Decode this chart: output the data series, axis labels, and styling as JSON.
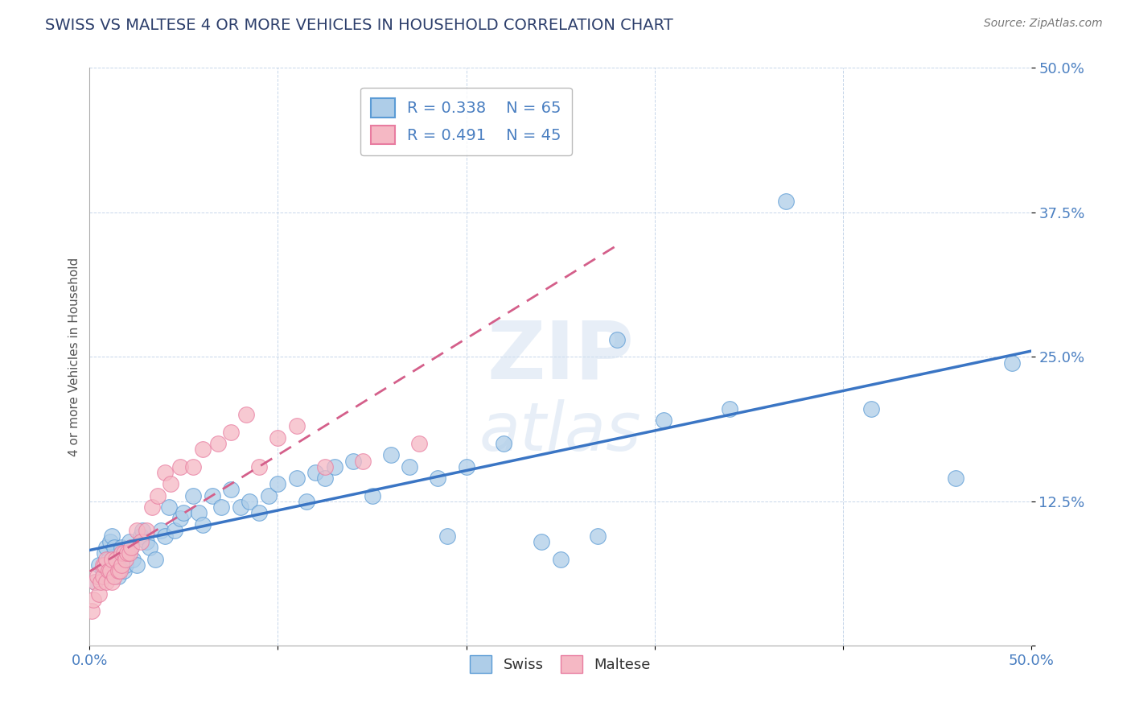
{
  "title": "SWISS VS MALTESE 4 OR MORE VEHICLES IN HOUSEHOLD CORRELATION CHART",
  "source": "Source: ZipAtlas.com",
  "ylabel": "4 or more Vehicles in Household",
  "xlim": [
    0.0,
    0.5
  ],
  "ylim": [
    0.0,
    0.5
  ],
  "xticks": [
    0.0,
    0.1,
    0.2,
    0.3,
    0.4,
    0.5
  ],
  "yticks": [
    0.0,
    0.125,
    0.25,
    0.375,
    0.5
  ],
  "xticklabels": [
    "0.0%",
    "",
    "",
    "",
    "",
    "50.0%"
  ],
  "yticklabels": [
    "",
    "12.5%",
    "25.0%",
    "37.5%",
    "50.0%"
  ],
  "swiss_R": 0.338,
  "swiss_N": 65,
  "maltese_R": 0.491,
  "maltese_N": 45,
  "swiss_color": "#aecde8",
  "maltese_color": "#f5b8c4",
  "swiss_edge_color": "#5b9bd5",
  "maltese_edge_color": "#e87ca0",
  "swiss_line_color": "#3a75c4",
  "maltese_line_color": "#d45f8a",
  "background_color": "#ffffff",
  "swiss_x": [
    0.003,
    0.005,
    0.007,
    0.008,
    0.009,
    0.01,
    0.011,
    0.012,
    0.013,
    0.014,
    0.015,
    0.016,
    0.017,
    0.018,
    0.019,
    0.02,
    0.021,
    0.022,
    0.023,
    0.025,
    0.027,
    0.028,
    0.03,
    0.032,
    0.035,
    0.038,
    0.04,
    0.042,
    0.045,
    0.048,
    0.05,
    0.055,
    0.058,
    0.06,
    0.065,
    0.07,
    0.075,
    0.08,
    0.085,
    0.09,
    0.095,
    0.1,
    0.11,
    0.115,
    0.12,
    0.125,
    0.13,
    0.14,
    0.15,
    0.16,
    0.17,
    0.185,
    0.19,
    0.2,
    0.22,
    0.24,
    0.25,
    0.27,
    0.28,
    0.305,
    0.34,
    0.37,
    0.415,
    0.46,
    0.49
  ],
  "swiss_y": [
    0.055,
    0.07,
    0.065,
    0.08,
    0.085,
    0.075,
    0.09,
    0.095,
    0.085,
    0.07,
    0.06,
    0.075,
    0.085,
    0.065,
    0.07,
    0.08,
    0.09,
    0.085,
    0.075,
    0.07,
    0.095,
    0.1,
    0.09,
    0.085,
    0.075,
    0.1,
    0.095,
    0.12,
    0.1,
    0.11,
    0.115,
    0.13,
    0.115,
    0.105,
    0.13,
    0.12,
    0.135,
    0.12,
    0.125,
    0.115,
    0.13,
    0.14,
    0.145,
    0.125,
    0.15,
    0.145,
    0.155,
    0.16,
    0.13,
    0.165,
    0.155,
    0.145,
    0.095,
    0.155,
    0.175,
    0.09,
    0.075,
    0.095,
    0.265,
    0.195,
    0.205,
    0.385,
    0.205,
    0.145,
    0.245
  ],
  "maltese_x": [
    0.001,
    0.002,
    0.003,
    0.004,
    0.005,
    0.006,
    0.007,
    0.007,
    0.008,
    0.009,
    0.009,
    0.01,
    0.011,
    0.012,
    0.012,
    0.013,
    0.014,
    0.015,
    0.016,
    0.017,
    0.017,
    0.018,
    0.019,
    0.02,
    0.021,
    0.022,
    0.025,
    0.027,
    0.03,
    0.033,
    0.036,
    0.04,
    0.043,
    0.048,
    0.055,
    0.06,
    0.068,
    0.075,
    0.083,
    0.09,
    0.1,
    0.11,
    0.125,
    0.145,
    0.175
  ],
  "maltese_y": [
    0.03,
    0.04,
    0.055,
    0.06,
    0.045,
    0.055,
    0.06,
    0.07,
    0.07,
    0.055,
    0.075,
    0.065,
    0.065,
    0.055,
    0.075,
    0.06,
    0.075,
    0.065,
    0.065,
    0.07,
    0.08,
    0.08,
    0.075,
    0.08,
    0.08,
    0.085,
    0.1,
    0.09,
    0.1,
    0.12,
    0.13,
    0.15,
    0.14,
    0.155,
    0.155,
    0.17,
    0.175,
    0.185,
    0.2,
    0.155,
    0.18,
    0.19,
    0.155,
    0.16,
    0.175
  ]
}
